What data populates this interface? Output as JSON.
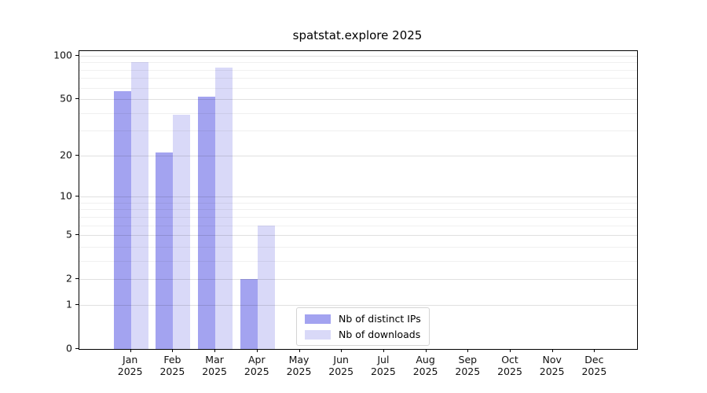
{
  "chart_data": {
    "type": "bar",
    "title": "spatstat.explore 2025",
    "categories": [
      "Jan 2025",
      "Feb 2025",
      "Mar 2025",
      "Apr 2025",
      "May 2025",
      "Jun 2025",
      "Jul 2025",
      "Aug 2025",
      "Sep 2025",
      "Oct 2025",
      "Nov 2025",
      "Dec 2025"
    ],
    "month_labels": [
      "Jan",
      "Feb",
      "Mar",
      "Apr",
      "May",
      "Jun",
      "Jul",
      "Aug",
      "Sep",
      "Oct",
      "Nov",
      "Dec"
    ],
    "year_label": "2025",
    "series": [
      {
        "name": "Nb of distinct IPs",
        "color": "#a3a3f0",
        "values": [
          57,
          21,
          52,
          2,
          0,
          0,
          0,
          0,
          0,
          0,
          0,
          0
        ]
      },
      {
        "name": "Nb of downloads",
        "color": "#d9d9f8",
        "values": [
          90,
          39,
          83,
          6,
          0,
          0,
          0,
          0,
          0,
          0,
          0,
          0
        ]
      }
    ],
    "yscale": "log10(1+y)",
    "ylim": [
      0,
      110
    ],
    "y_tick_values": [
      0,
      1,
      2,
      5,
      10,
      20,
      50,
      100
    ],
    "y_minor_gridlines": [
      3,
      4,
      6,
      7,
      8,
      9,
      30,
      40,
      60,
      70,
      80,
      90
    ],
    "grid": "horizontal",
    "legend_position": "lower-center"
  },
  "colors": {
    "ips_bar": "#a3a3f0",
    "downloads_bar": "#d9d9f8",
    "major_gridline": "rgba(0,0,0,0.12)",
    "minor_gridline": "rgba(0,0,0,0.06)",
    "axis": "#000000",
    "legend_border": "#d4d4d4",
    "background": "#ffffff"
  }
}
